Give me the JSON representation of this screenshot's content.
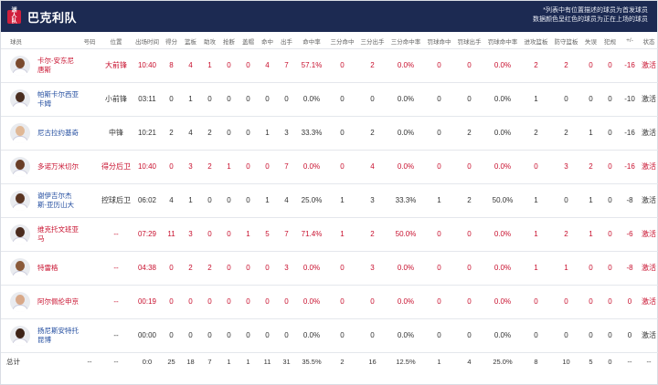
{
  "header": {
    "logo_text": "湖人队",
    "team_name": "巴克利队",
    "note_line1": "*列表中有位置描述的球员为首发球员",
    "note_line2": "数据颜色呈红色的球员为正在上场的球员"
  },
  "columns": [
    "球员",
    "号码",
    "位置",
    "出场时间",
    "得分",
    "篮板",
    "助攻",
    "抢断",
    "盖帽",
    "命中",
    "出手",
    "命中率",
    "三分命中",
    "三分出手",
    "三分命中率",
    "罚球命中",
    "罚球出手",
    "罚球命中率",
    "进攻篮板",
    "防守篮板",
    "失误",
    "犯规",
    "+/-",
    "状态"
  ],
  "players": [
    {
      "name": "卡尔-安东尼唐斯",
      "name_color": "#c8102e",
      "skin": "#7a4a2e",
      "on_court": true,
      "number": "",
      "position": "大前锋",
      "stats": [
        "10:40",
        "8",
        "4",
        "1",
        "0",
        "0",
        "4",
        "7",
        "57.1%",
        "0",
        "2",
        "0.0%",
        "0",
        "0",
        "0.0%",
        "2",
        "2",
        "0",
        "0",
        "-16"
      ],
      "status": "激活"
    },
    {
      "name": "帕斯卡尔西亚卡姆",
      "name_color": "#1f4a9e",
      "skin": "#4a2e20",
      "on_court": false,
      "number": "",
      "position": "小前锋",
      "stats": [
        "03:11",
        "0",
        "1",
        "0",
        "0",
        "0",
        "0",
        "0",
        "0.0%",
        "0",
        "0",
        "0.0%",
        "0",
        "0",
        "0.0%",
        "1",
        "0",
        "0",
        "0",
        "-10"
      ],
      "status": "激活"
    },
    {
      "name": "尼古拉约基奇",
      "name_color": "#1f4a9e",
      "skin": "#e0b896",
      "on_court": false,
      "number": "",
      "position": "中锋",
      "stats": [
        "10:21",
        "2",
        "4",
        "2",
        "0",
        "0",
        "1",
        "3",
        "33.3%",
        "0",
        "2",
        "0.0%",
        "0",
        "2",
        "0.0%",
        "2",
        "2",
        "1",
        "0",
        "-16"
      ],
      "status": "激活"
    },
    {
      "name": "多诺万米切尔",
      "name_color": "#c8102e",
      "skin": "#6a3e26",
      "on_court": true,
      "number": "",
      "position": "得分后卫",
      "stats": [
        "10:40",
        "0",
        "3",
        "2",
        "1",
        "0",
        "0",
        "7",
        "0.0%",
        "0",
        "4",
        "0.0%",
        "0",
        "0",
        "0.0%",
        "0",
        "3",
        "2",
        "0",
        "-16"
      ],
      "status": "激活"
    },
    {
      "name": "谢伊吉尔杰斯-亚历山大",
      "name_color": "#1f4a9e",
      "skin": "#5a3522",
      "on_court": false,
      "number": "",
      "position": "控球后卫",
      "stats": [
        "06:02",
        "4",
        "1",
        "0",
        "0",
        "0",
        "1",
        "4",
        "25.0%",
        "1",
        "3",
        "33.3%",
        "1",
        "2",
        "50.0%",
        "1",
        "0",
        "1",
        "0",
        "-8"
      ],
      "status": "激活"
    },
    {
      "name": "维克托文班亚马",
      "name_color": "#c8102e",
      "skin": "#4a2b1e",
      "on_court": true,
      "number": "",
      "position": "--",
      "stats": [
        "07:29",
        "11",
        "3",
        "0",
        "0",
        "1",
        "5",
        "7",
        "71.4%",
        "1",
        "2",
        "50.0%",
        "0",
        "0",
        "0.0%",
        "1",
        "2",
        "1",
        "0",
        "-6"
      ],
      "status": "激活"
    },
    {
      "name": "特雷格",
      "name_color": "#c8102e",
      "skin": "#8a5a3a",
      "on_court": true,
      "number": "",
      "position": "--",
      "stats": [
        "04:38",
        "0",
        "2",
        "2",
        "0",
        "0",
        "0",
        "3",
        "0.0%",
        "0",
        "3",
        "0.0%",
        "0",
        "0",
        "0.0%",
        "1",
        "1",
        "0",
        "0",
        "-8"
      ],
      "status": "激活"
    },
    {
      "name": "阿尔佩伦申京",
      "name_color": "#c8102e",
      "skin": "#d8a888",
      "on_court": true,
      "number": "",
      "position": "--",
      "stats": [
        "00:19",
        "0",
        "0",
        "0",
        "0",
        "0",
        "0",
        "0",
        "0.0%",
        "0",
        "0",
        "0.0%",
        "0",
        "0",
        "0.0%",
        "0",
        "0",
        "0",
        "0",
        "0"
      ],
      "status": "激活"
    },
    {
      "name": "扬尼斯安特托昆博",
      "name_color": "#1f4a9e",
      "skin": "#3e2418",
      "on_court": false,
      "number": "",
      "position": "--",
      "stats": [
        "00:00",
        "0",
        "0",
        "0",
        "0",
        "0",
        "0",
        "0",
        "0.0%",
        "0",
        "0",
        "0.0%",
        "0",
        "0",
        "0.0%",
        "0",
        "0",
        "0",
        "0",
        "0"
      ],
      "status": "激活"
    }
  ],
  "totals": {
    "label": "总计",
    "values": [
      "--",
      "--",
      "0:0",
      "25",
      "18",
      "7",
      "1",
      "1",
      "11",
      "31",
      "35.5%",
      "2",
      "16",
      "12.5%",
      "1",
      "4",
      "25.0%",
      "8",
      "10",
      "5",
      "0",
      "--",
      "--"
    ]
  },
  "colors": {
    "header_bg": "#1c2a52",
    "on_court_text": "#c8102e",
    "bench_text": "#1f4a9e"
  }
}
